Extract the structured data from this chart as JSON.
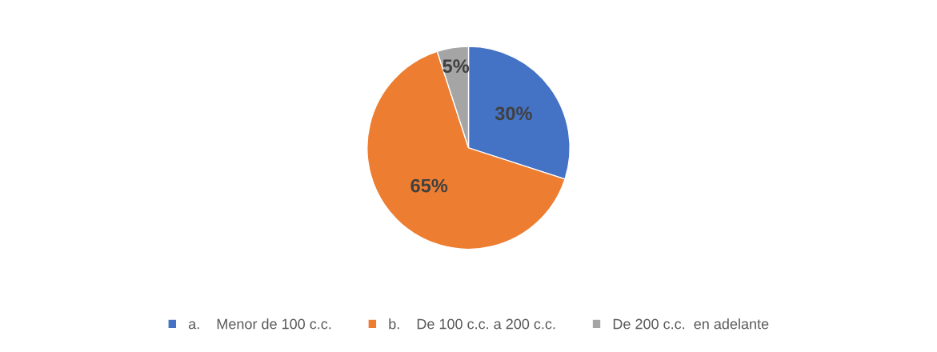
{
  "chart_data": {
    "type": "pie",
    "categories": [
      "a.    Menor de 100 c.c.",
      "b.    De 100 c.c. a 200 c.c.",
      "De 200 c.c.  en adelante"
    ],
    "values": [
      30,
      65,
      5
    ],
    "colors": [
      "#4472c4",
      "#ed7d31",
      "#a5a5a5"
    ],
    "value_labels": [
      "30%",
      "65%",
      "5%"
    ],
    "legend": "bottom"
  }
}
